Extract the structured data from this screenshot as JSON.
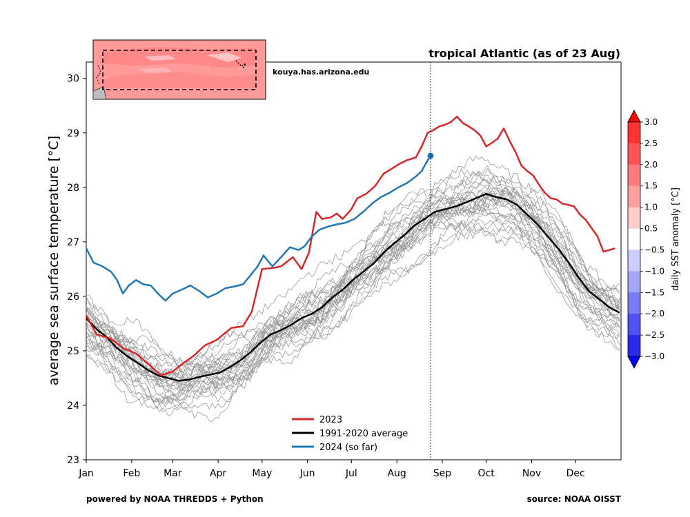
{
  "chart_data": {
    "type": "line",
    "title": "tropical Atlantic (as of 23 Aug)",
    "ylabel": "average sea surface temperature [°C]",
    "xlabel": "",
    "ylim": [
      23,
      30.3
    ],
    "yticks": [
      23,
      24,
      25,
      26,
      27,
      28,
      29,
      30
    ],
    "x_axis": "day of year",
    "xticks": [
      {
        "label": "Jan",
        "day": 1
      },
      {
        "label": "Feb",
        "day": 32
      },
      {
        "label": "Mar",
        "day": 60
      },
      {
        "label": "Apr",
        "day": 91
      },
      {
        "label": "May",
        "day": 121
      },
      {
        "label": "Jun",
        "day": 152
      },
      {
        "label": "Jul",
        "day": 182
      },
      {
        "label": "Aug",
        "day": 213
      },
      {
        "label": "Sep",
        "day": 244
      },
      {
        "label": "Oct",
        "day": 274
      },
      {
        "label": "Nov",
        "day": 305
      },
      {
        "label": "Dec",
        "day": 335
      }
    ],
    "current_day_marker": 236,
    "grid": false,
    "legend_position": "bottom-center",
    "series": [
      {
        "name": "2023",
        "color": "#d62728",
        "points": [
          [
            1,
            25.65
          ],
          [
            8,
            25.3
          ],
          [
            18,
            25.22
          ],
          [
            26,
            25.05
          ],
          [
            35,
            24.95
          ],
          [
            45,
            24.72
          ],
          [
            52,
            24.55
          ],
          [
            60,
            24.62
          ],
          [
            66,
            24.75
          ],
          [
            74,
            24.9
          ],
          [
            82,
            25.1
          ],
          [
            90,
            25.2
          ],
          [
            100,
            25.42
          ],
          [
            108,
            25.45
          ],
          [
            114,
            25.72
          ],
          [
            121,
            26.5
          ],
          [
            128,
            26.52
          ],
          [
            134,
            26.55
          ],
          [
            142,
            26.72
          ],
          [
            148,
            26.5
          ],
          [
            153,
            26.8
          ],
          [
            158,
            27.55
          ],
          [
            162,
            27.42
          ],
          [
            168,
            27.45
          ],
          [
            172,
            27.52
          ],
          [
            176,
            27.42
          ],
          [
            182,
            27.6
          ],
          [
            186,
            27.8
          ],
          [
            192,
            27.88
          ],
          [
            198,
            28.02
          ],
          [
            204,
            28.25
          ],
          [
            210,
            28.35
          ],
          [
            214,
            28.42
          ],
          [
            220,
            28.5
          ],
          [
            226,
            28.55
          ],
          [
            230,
            28.75
          ],
          [
            234,
            29.0
          ],
          [
            238,
            29.05
          ],
          [
            242,
            29.12
          ],
          [
            246,
            29.15
          ],
          [
            250,
            29.2
          ],
          [
            254,
            29.3
          ],
          [
            258,
            29.18
          ],
          [
            262,
            29.12
          ],
          [
            266,
            29.05
          ],
          [
            270,
            28.95
          ],
          [
            274,
            28.75
          ],
          [
            278,
            28.82
          ],
          [
            282,
            28.9
          ],
          [
            286,
            29.08
          ],
          [
            290,
            28.85
          ],
          [
            294,
            28.65
          ],
          [
            298,
            28.4
          ],
          [
            302,
            28.3
          ],
          [
            306,
            28.22
          ],
          [
            310,
            28.05
          ],
          [
            314,
            27.9
          ],
          [
            318,
            27.8
          ],
          [
            322,
            27.78
          ],
          [
            326,
            27.7
          ],
          [
            330,
            27.68
          ],
          [
            334,
            27.65
          ],
          [
            338,
            27.5
          ],
          [
            342,
            27.4
          ],
          [
            346,
            27.25
          ],
          [
            350,
            27.1
          ],
          [
            354,
            26.82
          ],
          [
            358,
            26.85
          ],
          [
            362,
            26.88
          ]
        ]
      },
      {
        "name": "1991-2020 average",
        "color": "#000000",
        "points": [
          [
            1,
            25.6
          ],
          [
            8,
            25.4
          ],
          [
            15,
            25.25
          ],
          [
            22,
            25.05
          ],
          [
            29,
            24.9
          ],
          [
            36,
            24.78
          ],
          [
            43,
            24.65
          ],
          [
            50,
            24.55
          ],
          [
            57,
            24.5
          ],
          [
            64,
            24.45
          ],
          [
            71,
            24.47
          ],
          [
            78,
            24.52
          ],
          [
            85,
            24.56
          ],
          [
            92,
            24.6
          ],
          [
            99,
            24.7
          ],
          [
            106,
            24.82
          ],
          [
            113,
            24.97
          ],
          [
            120,
            25.15
          ],
          [
            127,
            25.3
          ],
          [
            134,
            25.38
          ],
          [
            141,
            25.48
          ],
          [
            148,
            25.6
          ],
          [
            155,
            25.68
          ],
          [
            162,
            25.8
          ],
          [
            169,
            25.98
          ],
          [
            176,
            26.12
          ],
          [
            183,
            26.3
          ],
          [
            190,
            26.45
          ],
          [
            197,
            26.6
          ],
          [
            204,
            26.8
          ],
          [
            211,
            26.97
          ],
          [
            218,
            27.12
          ],
          [
            225,
            27.3
          ],
          [
            232,
            27.42
          ],
          [
            239,
            27.55
          ],
          [
            246,
            27.6
          ],
          [
            253,
            27.65
          ],
          [
            260,
            27.72
          ],
          [
            267,
            27.8
          ],
          [
            274,
            27.88
          ],
          [
            281,
            27.82
          ],
          [
            288,
            27.78
          ],
          [
            295,
            27.68
          ],
          [
            302,
            27.5
          ],
          [
            309,
            27.32
          ],
          [
            316,
            27.1
          ],
          [
            323,
            26.88
          ],
          [
            330,
            26.63
          ],
          [
            337,
            26.35
          ],
          [
            344,
            26.1
          ],
          [
            351,
            25.95
          ],
          [
            358,
            25.8
          ],
          [
            365,
            25.7
          ]
        ]
      },
      {
        "name": "2024 (so far)",
        "color": "#1f77b4",
        "points": [
          [
            1,
            26.88
          ],
          [
            6,
            26.62
          ],
          [
            12,
            26.55
          ],
          [
            18,
            26.45
          ],
          [
            22,
            26.3
          ],
          [
            26,
            26.05
          ],
          [
            30,
            26.2
          ],
          [
            35,
            26.3
          ],
          [
            40,
            26.22
          ],
          [
            45,
            26.2
          ],
          [
            50,
            26.05
          ],
          [
            55,
            25.92
          ],
          [
            60,
            26.05
          ],
          [
            66,
            26.12
          ],
          [
            72,
            26.2
          ],
          [
            78,
            26.1
          ],
          [
            84,
            25.98
          ],
          [
            90,
            26.05
          ],
          [
            96,
            26.15
          ],
          [
            102,
            26.18
          ],
          [
            108,
            26.22
          ],
          [
            112,
            26.35
          ],
          [
            118,
            26.55
          ],
          [
            122,
            26.75
          ],
          [
            128,
            26.55
          ],
          [
            134,
            26.72
          ],
          [
            140,
            26.9
          ],
          [
            146,
            26.85
          ],
          [
            150,
            26.92
          ],
          [
            155,
            27.1
          ],
          [
            160,
            27.22
          ],
          [
            166,
            27.28
          ],
          [
            172,
            27.32
          ],
          [
            178,
            27.35
          ],
          [
            184,
            27.42
          ],
          [
            190,
            27.55
          ],
          [
            196,
            27.7
          ],
          [
            202,
            27.82
          ],
          [
            208,
            27.9
          ],
          [
            214,
            28.0
          ],
          [
            220,
            28.08
          ],
          [
            226,
            28.2
          ],
          [
            230,
            28.3
          ],
          [
            233,
            28.45
          ],
          [
            236,
            28.58
          ]
        ]
      }
    ],
    "climatology_years": "gray ensemble of individual past years"
  },
  "annotation": "kouya.has.arizona.edu",
  "footer": {
    "left": "powered by NOAA THREDDS + Python",
    "right": "source: NOAA OISST"
  },
  "colorbar": {
    "label": "daily SST anomaly [°C]",
    "ticks": [
      "3.0",
      "2.5",
      "2.0",
      "1.5",
      "1.0",
      "0.5",
      "−0.5",
      "−1.0",
      "−1.5",
      "−2.0",
      "−2.5",
      "−3.0"
    ],
    "colors": [
      "#ff0000",
      "#ff3333",
      "#ff5555",
      "#ff7a7a",
      "#ffa0a0",
      "#ffcccc",
      "#ffffff",
      "#ccccff",
      "#a5a5f8",
      "#7b7bf5",
      "#5151f0",
      "#2a2aea",
      "#0000ff"
    ]
  }
}
